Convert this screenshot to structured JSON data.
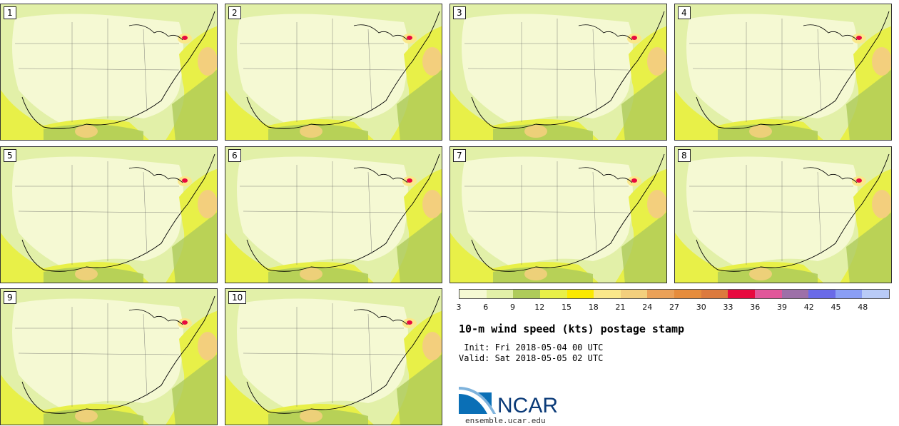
{
  "members": [
    "1",
    "2",
    "3",
    "4",
    "5",
    "6",
    "7",
    "8",
    "9",
    "10"
  ],
  "colorbar": {
    "colors": [
      "#f5f9d3",
      "#e2f0a8",
      "#aecb5a",
      "#e8f048",
      "#fbe900",
      "#fbe88a",
      "#f3cf7d",
      "#eba158",
      "#e68c3c",
      "#dc7a3e",
      "#e8093f",
      "#e1579a",
      "#9d70a8",
      "#6a6ae8",
      "#8a9ef5",
      "#b9cbf7"
    ],
    "ticks": [
      "3",
      "6",
      "9",
      "12",
      "15",
      "18",
      "21",
      "24",
      "27",
      "30",
      "33",
      "36",
      "39",
      "42",
      "45",
      "48"
    ]
  },
  "title": "10-m wind speed (kts) postage stamp",
  "init": " Init: Fri 2018-05-04 00 UTC",
  "valid": "Valid: Sat 2018-05-05 02 UTC",
  "logo": {
    "text": "NCAR",
    "color": "#0a3a78",
    "accent": "#1c6fb0"
  },
  "site": "ensemble.ucar.edu"
}
